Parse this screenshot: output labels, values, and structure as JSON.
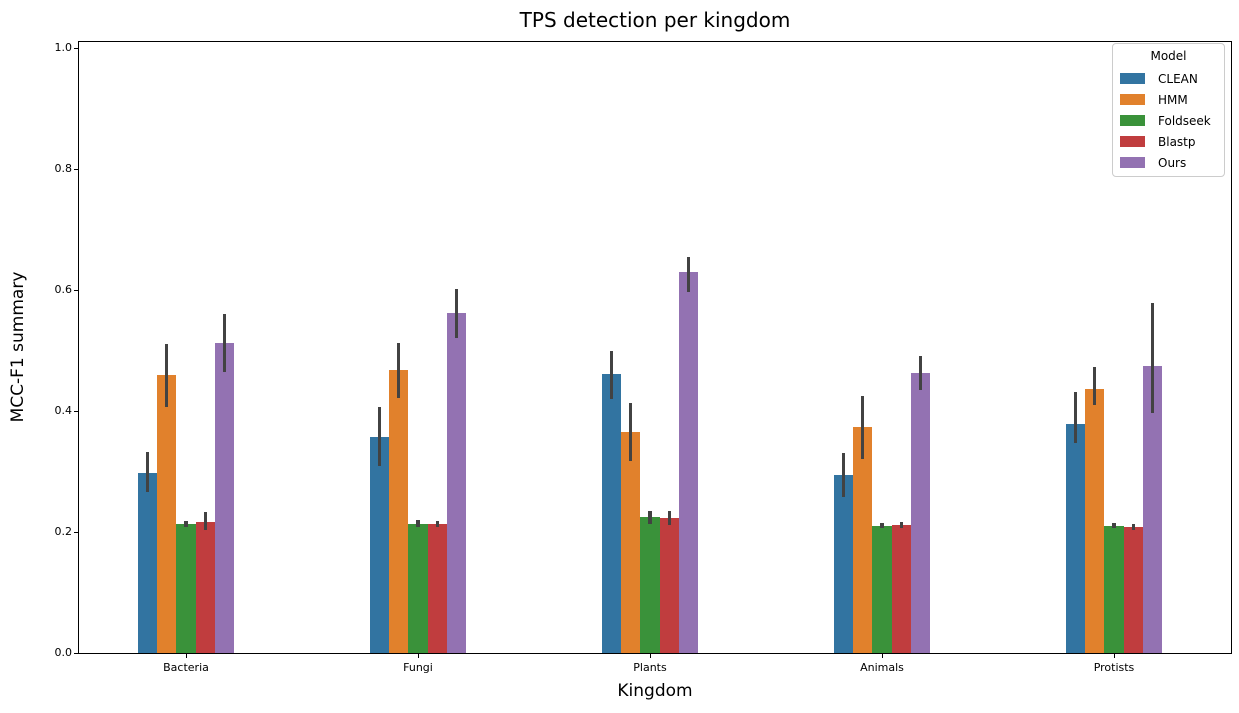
{
  "chart_data": {
    "type": "bar",
    "title": "TPS detection per kingdom",
    "xlabel": "Kingdom",
    "ylabel": "MCC-F1 summary",
    "ylim": [
      0.0,
      1.0
    ],
    "yticks": [
      0.0,
      0.2,
      0.4,
      0.6,
      0.8,
      1.0
    ],
    "grid": false,
    "categories": [
      "Bacteria",
      "Fungi",
      "Plants",
      "Animals",
      "Protists"
    ],
    "legend": {
      "title": "Model",
      "position": "upper right"
    },
    "error_bars": {
      "color": "#424242",
      "caps": false
    },
    "series": [
      {
        "name": "CLEAN",
        "color": "#3274a1",
        "values": [
          0.298,
          0.357,
          0.462,
          0.294,
          0.378
        ],
        "err_low": [
          0.266,
          0.309,
          0.42,
          0.258,
          0.347
        ],
        "err_high": [
          0.333,
          0.407,
          0.499,
          0.33,
          0.432
        ]
      },
      {
        "name": "HMM",
        "color": "#e1812c",
        "values": [
          0.46,
          0.467,
          0.366,
          0.373,
          0.436
        ],
        "err_low": [
          0.407,
          0.421,
          0.318,
          0.32,
          0.41
        ],
        "err_high": [
          0.511,
          0.512,
          0.414,
          0.424,
          0.473
        ]
      },
      {
        "name": "Foldseek",
        "color": "#3a923a",
        "values": [
          0.213,
          0.214,
          0.225,
          0.21,
          0.21
        ],
        "err_low": [
          0.208,
          0.209,
          0.214,
          0.206,
          0.206
        ],
        "err_high": [
          0.218,
          0.22,
          0.235,
          0.215,
          0.215
        ]
      },
      {
        "name": "Blastp",
        "color": "#c03d3e",
        "values": [
          0.217,
          0.213,
          0.223,
          0.212,
          0.209
        ],
        "err_low": [
          0.204,
          0.208,
          0.212,
          0.207,
          0.204
        ],
        "err_high": [
          0.233,
          0.219,
          0.234,
          0.216,
          0.214
        ]
      },
      {
        "name": "Ours",
        "color": "#9372b2",
        "values": [
          0.513,
          0.562,
          0.629,
          0.463,
          0.474
        ],
        "err_low": [
          0.465,
          0.52,
          0.597,
          0.434,
          0.397
        ],
        "err_high": [
          0.561,
          0.601,
          0.654,
          0.491,
          0.578
        ]
      }
    ]
  }
}
